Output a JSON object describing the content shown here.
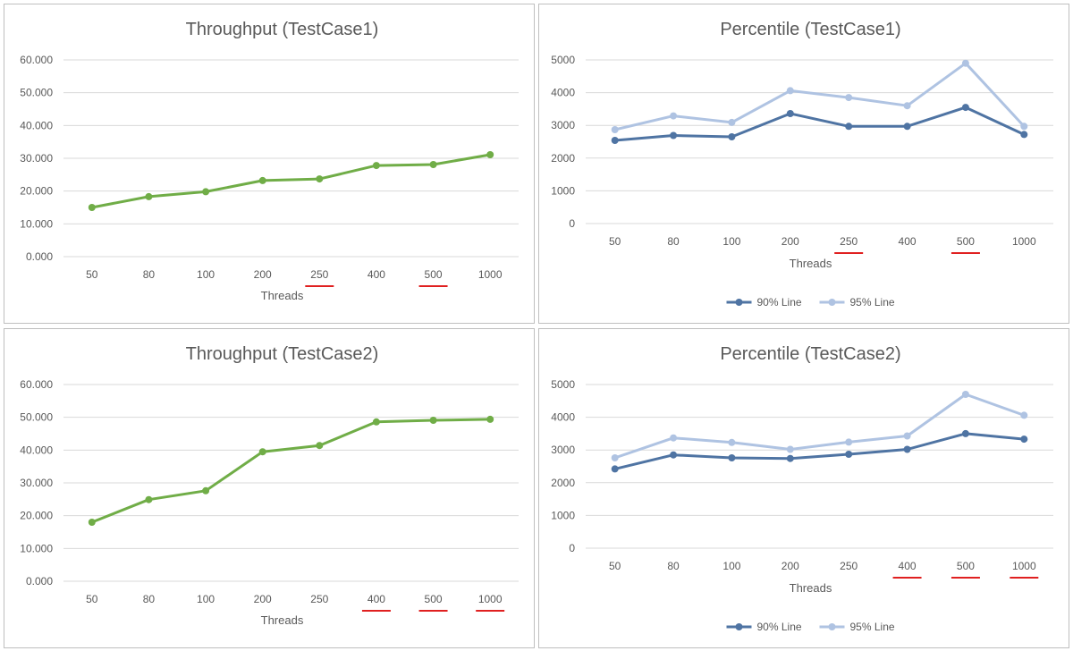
{
  "chart_data": [
    {
      "type": "line",
      "title": "Throughput (TestCase1)",
      "xlabel": "Threads",
      "ylabel": "",
      "categories": [
        "50",
        "80",
        "100",
        "200",
        "250",
        "400",
        "500",
        "1000"
      ],
      "highlighted_categories": [
        "250",
        "500"
      ],
      "y_ticks": [
        "0.000",
        "10.000",
        "20.000",
        "30.000",
        "40.000",
        "50.000",
        "60.000"
      ],
      "ylim": [
        0,
        60000
      ],
      "grid": true,
      "legend": "none",
      "series": [
        {
          "values": [
            15000,
            18300,
            19800,
            23200,
            23700,
            27800,
            28100,
            31100
          ],
          "color": "#70AD47"
        }
      ]
    },
    {
      "type": "line",
      "title": "Percentile (TestCase1)",
      "xlabel": "Threads",
      "ylabel": "",
      "categories": [
        "50",
        "80",
        "100",
        "200",
        "250",
        "400",
        "500",
        "1000"
      ],
      "highlighted_categories": [
        "250",
        "500"
      ],
      "y_ticks": [
        "0",
        "1000",
        "2000",
        "3000",
        "4000",
        "5000"
      ],
      "ylim": [
        0,
        5000
      ],
      "grid": true,
      "legend": "bottom",
      "series": [
        {
          "name": "90% Line",
          "values": [
            2540,
            2690,
            2650,
            3360,
            2970,
            2970,
            3550,
            2720
          ],
          "color": "#4F74A3"
        },
        {
          "name": "95% Line",
          "values": [
            2870,
            3290,
            3090,
            4060,
            3850,
            3600,
            4900,
            2970
          ],
          "color": "#AFC3E2"
        }
      ]
    },
    {
      "type": "line",
      "title": "Throughput (TestCase2)",
      "xlabel": "Threads",
      "ylabel": "",
      "categories": [
        "50",
        "80",
        "100",
        "200",
        "250",
        "400",
        "500",
        "1000"
      ],
      "highlighted_categories": [
        "400",
        "500",
        "1000"
      ],
      "y_ticks": [
        "0.000",
        "10.000",
        "20.000",
        "30.000",
        "40.000",
        "50.000",
        "60.000"
      ],
      "ylim": [
        0,
        60000
      ],
      "grid": true,
      "legend": "none",
      "series": [
        {
          "values": [
            18000,
            24900,
            27600,
            39500,
            41400,
            48600,
            49100,
            49400
          ],
          "color": "#70AD47"
        }
      ]
    },
    {
      "type": "line",
      "title": "Percentile (TestCase2)",
      "xlabel": "Threads",
      "ylabel": "",
      "categories": [
        "50",
        "80",
        "100",
        "200",
        "250",
        "400",
        "500",
        "1000"
      ],
      "highlighted_categories": [
        "400",
        "500",
        "1000"
      ],
      "y_ticks": [
        "0",
        "1000",
        "2000",
        "3000",
        "4000",
        "5000"
      ],
      "ylim": [
        0,
        5000
      ],
      "grid": true,
      "legend": "bottom",
      "series": [
        {
          "name": "90% Line",
          "values": [
            2420,
            2850,
            2760,
            2740,
            2870,
            3020,
            3500,
            3330
          ],
          "color": "#4F74A3"
        },
        {
          "name": "95% Line",
          "values": [
            2760,
            3370,
            3230,
            3020,
            3240,
            3430,
            4700,
            4060
          ],
          "color": "#AFC3E2"
        }
      ]
    }
  ],
  "colors": {
    "gridline": "#d9d9d9",
    "text": "#595959",
    "underline": "#E02020",
    "border": "#bfbfbf"
  }
}
